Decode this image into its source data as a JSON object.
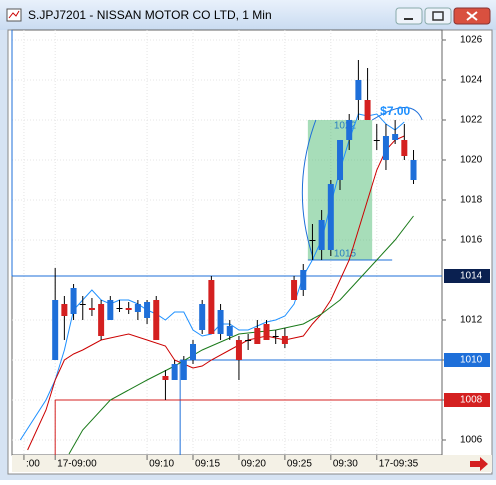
{
  "chart_data": {
    "type": "candlestick",
    "title": "S.JPJ7201 - NISSAN MOTOR CO LTD, 1 Min",
    "x": [
      0,
      1,
      2,
      3,
      4,
      5,
      6,
      7,
      8,
      9,
      10,
      11,
      12,
      13,
      14,
      15,
      16,
      17,
      18,
      19,
      20,
      21,
      22,
      23,
      24,
      25,
      26,
      27,
      28,
      29,
      30,
      31,
      32,
      33,
      34,
      35,
      36,
      37,
      38,
      39
    ],
    "open": [
      1010,
      1012.8,
      1012.3,
      1012.8,
      1012.6,
      1012.8,
      1012,
      1012.6,
      1012.6,
      1012.4,
      1012.1,
      1013,
      1009.2,
      1009,
      1009,
      1010,
      1011.5,
      1014,
      1011.3,
      1011.2,
      1011,
      1011,
      1011.6,
      1011.8,
      1011.2,
      1011.2,
      1014,
      1013.5,
      1016,
      1015.5,
      1015.5,
      1019,
      1021,
      1023,
      1023,
      1021,
      1020,
      1021,
      1021,
      1019
    ],
    "high": [
      1014.6,
      1013.2,
      1013.8,
      1013.2,
      1013.1,
      1013,
      1013.2,
      1013,
      1012.9,
      1013,
      1013,
      1013.2,
      1009.5,
      1010,
      1010.2,
      1011,
      1013,
      1014.2,
      1012.8,
      1012,
      1011.2,
      1011.3,
      1012,
      1012,
      1011.5,
      1011.6,
      1014.2,
      1014.8,
      1016.8,
      1017.5,
      1019,
      1021,
      1022.3,
      1025,
      1024.6,
      1021.8,
      1021.8,
      1022,
      1021.8,
      1020.5
    ],
    "low": [
      1010,
      1011,
      1012,
      1012,
      1012.2,
      1011,
      1012,
      1012.4,
      1012.3,
      1012,
      1011.8,
      1011,
      1008,
      1009,
      1009,
      1009.8,
      1011.3,
      1011.3,
      1011,
      1011,
      1009,
      1010.5,
      1010.8,
      1011,
      1010.8,
      1010.6,
      1013,
      1013.2,
      1015,
      1015,
      1015.2,
      1018.5,
      1020.5,
      1022,
      1022,
      1020.5,
      1019.5,
      1020.8,
      1020,
      1018.8
    ],
    "close": [
      1013,
      1012.2,
      1013.6,
      1012.8,
      1012.5,
      1011.2,
      1013,
      1012.6,
      1012.5,
      1012.8,
      1012.9,
      1011,
      1009,
      1009.8,
      1010,
      1010.8,
      1012.8,
      1011.3,
      1012.5,
      1011.7,
      1010,
      1011,
      1010.8,
      1011,
      1011.2,
      1010.8,
      1013,
      1014.5,
      1016,
      1017,
      1018.8,
      1021,
      1022,
      1024,
      1022,
      1021,
      1021.2,
      1021.3,
      1020.2,
      1020
    ],
    "up_color": "#1e6fd9",
    "down_color": "#d42020",
    "lines": [
      {
        "color": "#1e90ff",
        "x": [
          -3.8,
          -1,
          0,
          1,
          2,
          3,
          4,
          5,
          6,
          7,
          8,
          9,
          10,
          11,
          12,
          13,
          14,
          15,
          16,
          17,
          18,
          19,
          20,
          21,
          22,
          23,
          24,
          25,
          26,
          27,
          28,
          29,
          30,
          31,
          32,
          33,
          34,
          35,
          36,
          37,
          38
        ],
        "values": [
          1006,
          1008,
          1009,
          1010.5,
          1012.5,
          1013,
          1013.5,
          1013,
          1012.8,
          1013,
          1013,
          1012.8,
          1012.5,
          1012.3,
          1012,
          1012.4,
          1012.4,
          1011.5,
          1011.2,
          1011.3,
          1011.8,
          1011.8,
          1011.5,
          1011.5,
          1011.7,
          1011.9,
          1012,
          1012.2,
          1012.8,
          1014.2,
          1015,
          1016,
          1017.8,
          1019.5,
          1021,
          1022.3,
          1022.2,
          1022.3,
          1021.8,
          1021.5,
          1021.9
        ]
      },
      {
        "color": "#cc0000",
        "x": [
          -3,
          -1,
          0,
          1,
          2,
          3,
          5,
          8,
          10,
          12,
          13,
          14,
          15,
          16,
          17,
          19,
          21,
          23,
          25,
          27,
          28,
          29,
          30,
          31,
          32,
          33,
          34,
          35,
          36,
          37,
          38
        ],
        "values": [
          1005.5,
          1007.5,
          1009,
          1010,
          1010.3,
          1010.5,
          1011,
          1011.3,
          1011,
          1010.7,
          1010,
          1009.8,
          1009.6,
          1009.7,
          1010,
          1010.5,
          1011,
          1011.2,
          1011,
          1011.2,
          1011.8,
          1012.3,
          1013,
          1014,
          1015,
          1016.5,
          1018,
          1019.5,
          1020.5,
          1021,
          1021.2
        ]
      },
      {
        "color": "#1a7a1a",
        "x": [
          1.5,
          3,
          6,
          10,
          13,
          16,
          20,
          24,
          27,
          29,
          31,
          33,
          35,
          37,
          39
        ],
        "values": [
          1005.3,
          1006.5,
          1008,
          1009,
          1009.7,
          1010.5,
          1011.3,
          1011.5,
          1011.8,
          1012.3,
          1013,
          1014,
          1015,
          1016,
          1017.2
        ]
      }
    ],
    "levels": [
      {
        "value": 1014.2,
        "label": "1014",
        "color": "#1e6fd9",
        "box": "#0a2050",
        "x_start": -4.7
      },
      {
        "value": 1010,
        "label": "1010",
        "color": "#1e6fd9",
        "box": "#1e6fd9",
        "x_start": 13.6
      },
      {
        "value": 1008,
        "label": "1008",
        "color": "#d42020",
        "box": "#d42020",
        "x_start": 0
      }
    ],
    "position": {
      "x": [
        27.5,
        34.5
      ],
      "entry": 1015,
      "target": 1022,
      "profit": "$7.00"
    },
    "xlim": [
      -4.7,
      42.1
    ],
    "ylim": [
      1005.25,
      1026.5
    ],
    "xticks": [
      {
        "value": -3.4,
        "label": ":00"
      },
      {
        "value": 0,
        "label": "17-09:00"
      },
      {
        "value": 10,
        "label": "09:10"
      },
      {
        "value": 15,
        "label": "09:15"
      },
      {
        "value": 20,
        "label": "09:20"
      },
      {
        "value": 25,
        "label": "09:25"
      },
      {
        "value": 30,
        "label": "09:30"
      },
      {
        "value": 35,
        "label": "17-09:35"
      }
    ],
    "yticks": [
      1006,
      1008,
      1010,
      1012,
      1016,
      1018,
      1020,
      1022,
      1024,
      1026
    ],
    "grid": true
  }
}
